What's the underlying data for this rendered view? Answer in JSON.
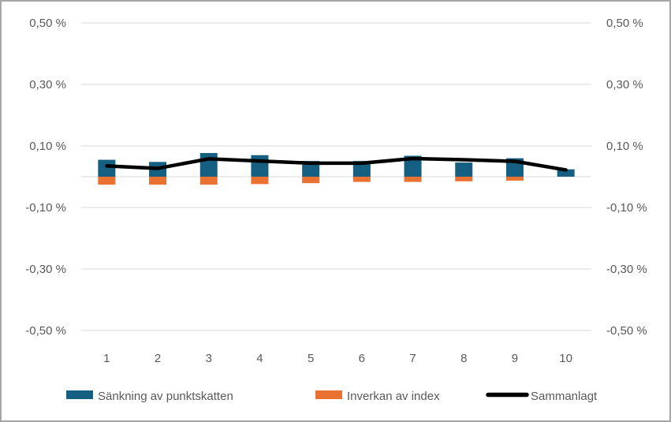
{
  "chart_data": {
    "type": "bar",
    "subtype": "combo-bar-line",
    "title": "",
    "xlabel": "",
    "ylabel": "",
    "categories": [
      "1",
      "2",
      "3",
      "4",
      "5",
      "6",
      "7",
      "8",
      "9",
      "10"
    ],
    "series": [
      {
        "name": "Sänkning av punktskatten",
        "type": "bar",
        "color": "#156082",
        "values": [
          0.055,
          0.048,
          0.077,
          0.07,
          0.051,
          0.051,
          0.068,
          0.046,
          0.06,
          0.024
        ]
      },
      {
        "name": "Inverkan av index",
        "type": "bar",
        "color": "#E97132",
        "values": [
          -0.026,
          -0.026,
          -0.026,
          -0.024,
          -0.021,
          -0.017,
          -0.017,
          -0.015,
          -0.013,
          0
        ]
      },
      {
        "name": "Sammanlagt",
        "type": "line",
        "color": "#000000",
        "values": [
          0.035,
          0.027,
          0.058,
          0.051,
          0.044,
          0.044,
          0.059,
          0.055,
          0.05,
          0.022
        ]
      }
    ],
    "ylim": [
      -0.5,
      0.5
    ],
    "y_ticks": [
      "0,50 %",
      "0,30 %",
      "0,10 %",
      "-0,10 %",
      "-0,30 %",
      "-0,50 %"
    ],
    "y_tick_values": [
      0.5,
      0.3,
      0.1,
      -0.1,
      -0.3,
      -0.5
    ],
    "grid": true,
    "gridline_color": "#d9d9d9",
    "axis_text_color": "#595959",
    "dual_axis": true,
    "legend_position": "bottom"
  }
}
